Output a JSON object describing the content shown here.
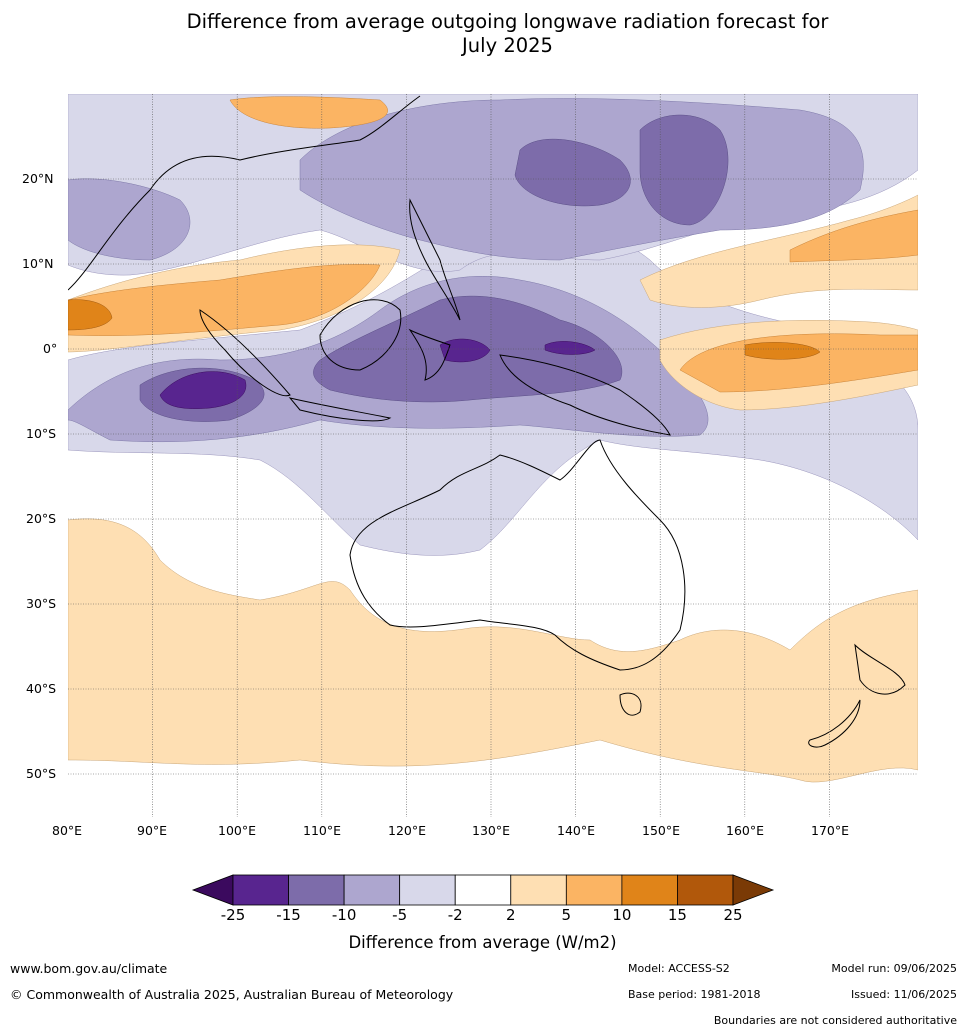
{
  "title_line1": "Difference from average outgoing longwave radiation forecast for",
  "title_line2": "July 2025",
  "map": {
    "lon_labels": [
      "80°E",
      "90°E",
      "100°E",
      "110°E",
      "120°E",
      "130°E",
      "140°E",
      "150°E",
      "160°E",
      "170°E"
    ],
    "lat_labels": [
      "20°N",
      "10°N",
      "0°",
      "10°S",
      "20°S",
      "30°S",
      "40°S",
      "50°S"
    ],
    "lon_range": [
      80,
      180
    ],
    "lat_range": [
      -55,
      30
    ],
    "grid": true
  },
  "colorbar": {
    "ticks": [
      "-25",
      "-15",
      "-10",
      "-5",
      "-2",
      "2",
      "5",
      "10",
      "15",
      "25"
    ],
    "colors": [
      "#3b0a5e",
      "#58258f",
      "#7d6caa",
      "#ada6cf",
      "#d8d8ea",
      "#ffffff",
      "#fedfb3",
      "#fbb463",
      "#e08419",
      "#b1580b",
      "#7a3a06"
    ],
    "label": "Difference from average (W/m2)"
  },
  "footer": {
    "website": "www.bom.gov.au/climate",
    "copyright": "© Commonwealth of Australia 2025, Australian Bureau of Meteorology",
    "model": "Model: ACCESS-S2",
    "base_period": "Base period: 1981-2018",
    "model_run": "Model run: 09/06/2025",
    "issued": "Issued: 11/06/2025",
    "disclaimer": "Boundaries are not considered authoritative"
  }
}
